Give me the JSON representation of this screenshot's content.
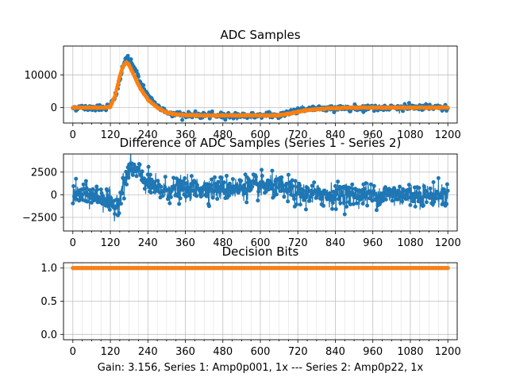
{
  "figure": {
    "caption": "Gain: 3.156, Series 1: Amp0p001, 1x --- Series 2: Amp0p22, 1x"
  },
  "colors": {
    "series1": "#1f77b4",
    "series2": "#ff7f0e",
    "grid": "#b0b0b0",
    "axis": "#000000"
  },
  "chart_data": [
    {
      "type": "scatter",
      "title": "ADC Samples",
      "xlabel": "",
      "ylabel": "",
      "xlim": [
        -30,
        1230
      ],
      "ylim": [
        -4700,
        18800
      ],
      "grid": true,
      "x_ticks": [
        0,
        120,
        240,
        360,
        480,
        600,
        720,
        840,
        960,
        1080,
        1200
      ],
      "x_tick_labels": [
        "0",
        "120",
        "240",
        "360",
        "480",
        "600",
        "720",
        "840",
        "960",
        "1080",
        "1200"
      ],
      "y_ticks": [
        0,
        10000
      ],
      "y_tick_labels": [
        "0",
        "10000"
      ],
      "series": [
        {
          "name": "Series 1",
          "color": "#1f77b4",
          "noise": 450,
          "x": [
            0,
            60,
            100,
            120,
            140,
            155,
            165,
            175,
            185,
            200,
            220,
            240,
            270,
            300,
            330,
            360,
            420,
            480,
            540,
            600,
            660,
            690,
            720,
            780,
            840,
            900,
            960,
            1020,
            1080,
            1140,
            1200
          ],
          "y": [
            0,
            0,
            0,
            500,
            4500,
            10500,
            14000,
            15200,
            14500,
            11500,
            7000,
            3500,
            300,
            -1300,
            -2000,
            -2300,
            -2400,
            -2400,
            -2400,
            -2400,
            -2300,
            -1500,
            -700,
            -300,
            -200,
            -100,
            0,
            0,
            0,
            0,
            0
          ]
        },
        {
          "name": "Series 2",
          "color": "#ff7f0e",
          "noise": 60,
          "x": [
            0,
            60,
            100,
            120,
            135,
            150,
            160,
            170,
            180,
            195,
            215,
            240,
            270,
            300,
            330,
            360,
            420,
            480,
            540,
            600,
            660,
            700,
            740,
            800,
            860,
            900,
            960,
            1020,
            1080,
            1140,
            1200
          ],
          "y": [
            0,
            0,
            0,
            300,
            3500,
            9500,
            12500,
            13800,
            13000,
            10000,
            6000,
            2500,
            0,
            -1500,
            -2100,
            -2300,
            -2400,
            -2400,
            -2400,
            -2400,
            -2350,
            -1700,
            -900,
            -300,
            -100,
            0,
            0,
            0,
            0,
            0,
            0
          ]
        }
      ]
    },
    {
      "type": "scatter",
      "title": "Difference of ADC Samples (Series 1 - Series 2)",
      "xlabel": "",
      "ylabel": "",
      "xlim": [
        -30,
        1230
      ],
      "ylim": [
        -4000,
        4500
      ],
      "grid": true,
      "x_ticks": [
        0,
        120,
        240,
        360,
        480,
        600,
        720,
        840,
        960,
        1080,
        1200
      ],
      "x_tick_labels": [
        "0",
        "120",
        "240",
        "360",
        "480",
        "600",
        "720",
        "840",
        "960",
        "1080",
        "1200"
      ],
      "y_ticks": [
        -2500,
        0,
        2500
      ],
      "y_tick_labels": [
        "−2500",
        "0",
        "2500"
      ],
      "series": [
        {
          "name": "Difference",
          "color": "#1f77b4",
          "noise": 650,
          "x": [
            0,
            40,
            80,
            110,
            130,
            145,
            160,
            175,
            190,
            210,
            240,
            270,
            300,
            360,
            420,
            480,
            540,
            600,
            660,
            700,
            720,
            780,
            840,
            900,
            960,
            1020,
            1080,
            1140,
            1200
          ],
          "y": [
            0,
            0,
            -200,
            -500,
            -1500,
            -600,
            800,
            2500,
            3000,
            2400,
            1200,
            600,
            500,
            600,
            700,
            700,
            800,
            900,
            800,
            400,
            100,
            0,
            0,
            0,
            0,
            0,
            0,
            0,
            0
          ]
        }
      ]
    },
    {
      "type": "scatter",
      "title": "Decision Bits",
      "xlabel": "",
      "ylabel": "",
      "xlim": [
        -30,
        1230
      ],
      "ylim": [
        -0.08,
        1.08
      ],
      "grid": true,
      "x_ticks": [
        0,
        120,
        240,
        360,
        480,
        600,
        720,
        840,
        960,
        1080,
        1200
      ],
      "x_tick_labels": [
        "0",
        "120",
        "240",
        "360",
        "480",
        "600",
        "720",
        "840",
        "960",
        "1080",
        "1200"
      ],
      "y_ticks": [
        0,
        0.5,
        1
      ],
      "y_tick_labels": [
        "0.0",
        "0.5",
        "1.0"
      ],
      "series": [
        {
          "name": "Series 1",
          "color": "#1f77b4",
          "noise": 0,
          "x": [
            0,
            1200
          ],
          "y": [
            1,
            1
          ]
        },
        {
          "name": "Series 2",
          "color": "#ff7f0e",
          "noise": 0,
          "x": [
            0,
            1200
          ],
          "y": [
            1,
            1
          ]
        }
      ]
    }
  ]
}
